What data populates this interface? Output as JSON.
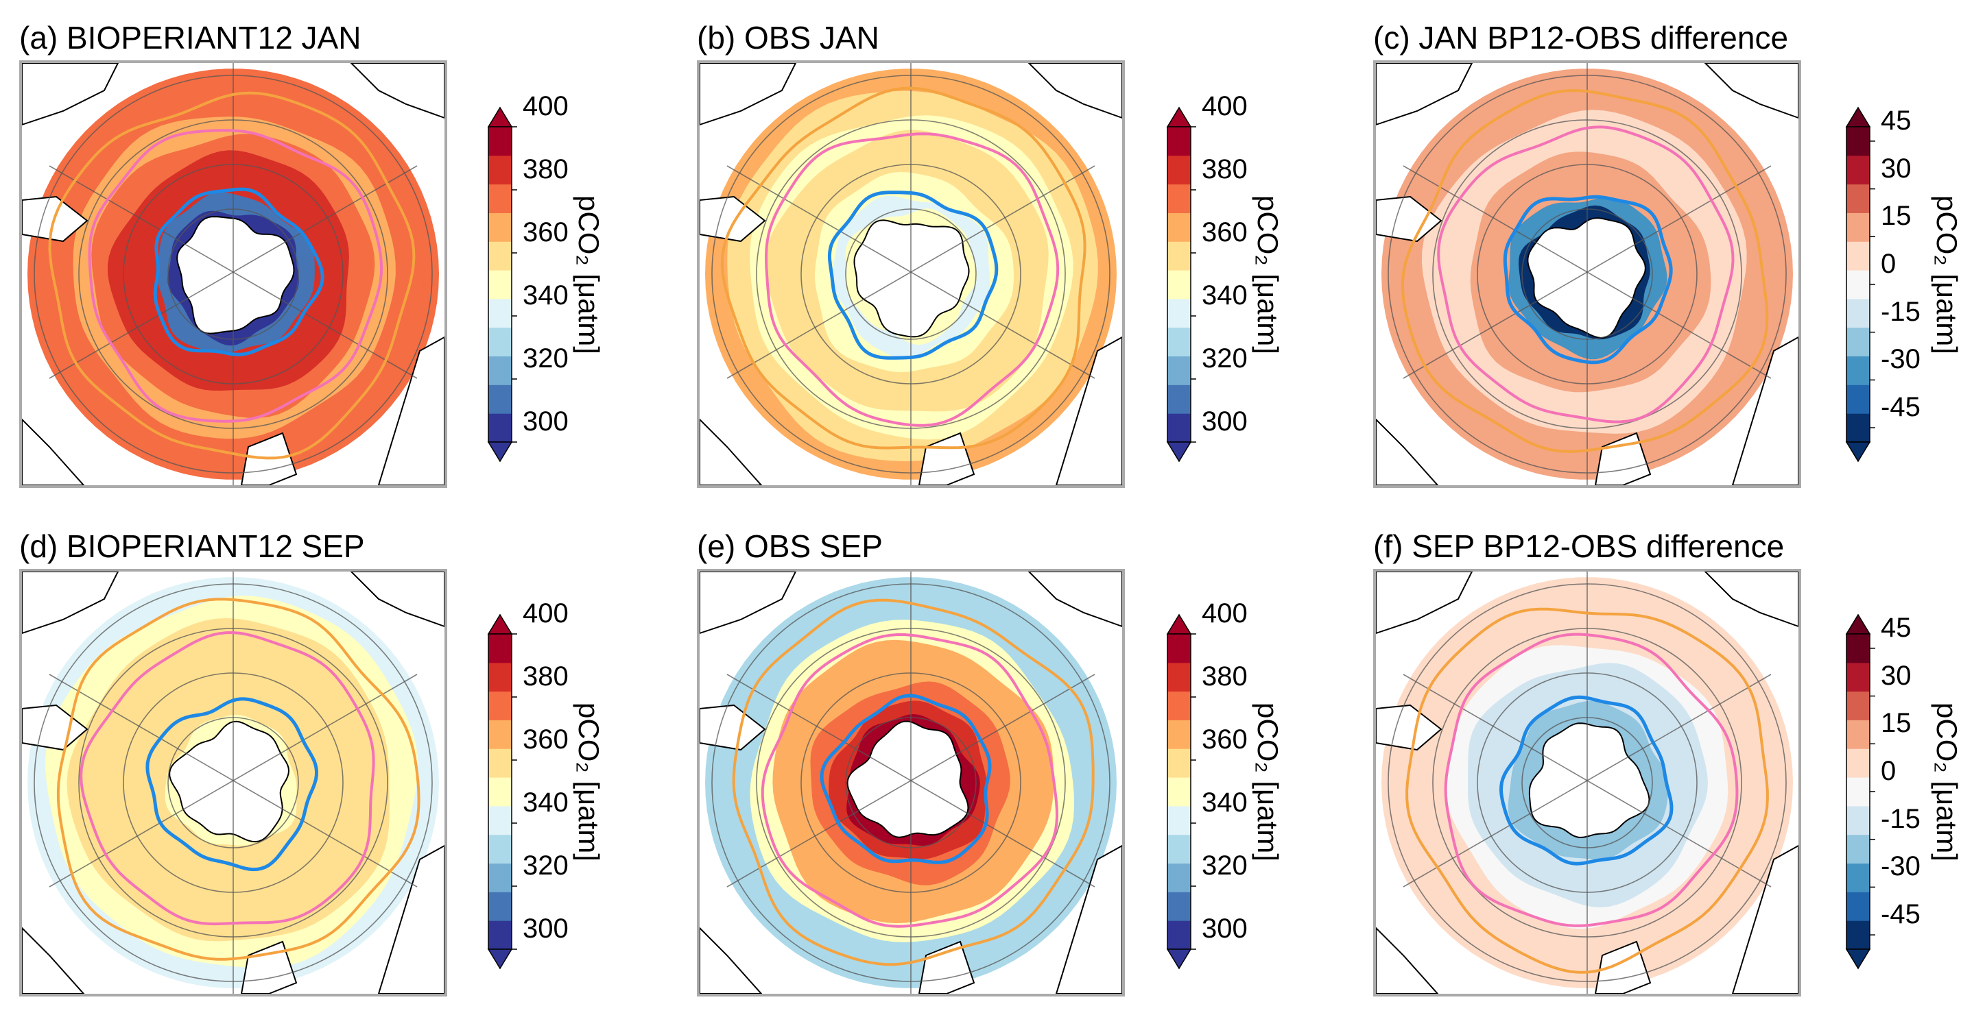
{
  "panels": [
    {
      "id": "a",
      "title": "(a) BIOPERIANT12 JAN",
      "kind": "model",
      "month": "jan"
    },
    {
      "id": "b",
      "title": "(b) OBS JAN",
      "kind": "obs",
      "month": "jan"
    },
    {
      "id": "c",
      "title": "(c) JAN BP12-OBS difference",
      "kind": "diff",
      "month": "jan"
    },
    {
      "id": "d",
      "title": "(d) BIOPERIANT12 SEP",
      "kind": "model",
      "month": "sep"
    },
    {
      "id": "e",
      "title": "(e) OBS SEP",
      "kind": "obs",
      "month": "sep"
    },
    {
      "id": "f",
      "title": "(f) SEP BP12-OBS difference",
      "kind": "diff",
      "month": "sep"
    }
  ],
  "colorbars": [
    {
      "id": "cb-a",
      "ticks": [
        "400",
        "380",
        "360",
        "340",
        "320",
        "300"
      ],
      "scale": "absolute"
    },
    {
      "id": "cb-b",
      "ticks": [
        "400",
        "380",
        "360",
        "340",
        "320",
        "300"
      ],
      "scale": "absolute"
    },
    {
      "id": "cb-c",
      "ticks": [
        "45",
        "30",
        "15",
        "0",
        "-15",
        "-30",
        "-45"
      ],
      "scale": "difference"
    },
    {
      "id": "cb-d",
      "ticks": [
        "400",
        "380",
        "360",
        "340",
        "320",
        "300"
      ],
      "scale": "absolute"
    },
    {
      "id": "cb-e",
      "ticks": [
        "400",
        "380",
        "360",
        "340",
        "320",
        "300"
      ],
      "scale": "absolute"
    },
    {
      "id": "cb-f",
      "ticks": [
        "45",
        "30",
        "15",
        "0",
        "-15",
        "-30",
        "-45"
      ],
      "scale": "difference"
    }
  ],
  "colorbar_label": "pCO₂ [μatm]",
  "legend_lines": {
    "front_outer": "#f4a340",
    "front_middle": "#f472b6",
    "front_inner": "#1e88e5"
  },
  "colors": {
    "absolute": [
      "#313695",
      "#4575b4",
      "#74add1",
      "#abd9e9",
      "#e0f3f8",
      "#ffffbf",
      "#fee090",
      "#fdae61",
      "#f46d43",
      "#d73027",
      "#a50026"
    ],
    "difference": [
      "#08306b",
      "#2166ac",
      "#4393c3",
      "#92c5de",
      "#d1e5f0",
      "#f7f7f7",
      "#fddbc7",
      "#f4a582",
      "#d6604d",
      "#b2182b",
      "#67001f"
    ]
  }
}
